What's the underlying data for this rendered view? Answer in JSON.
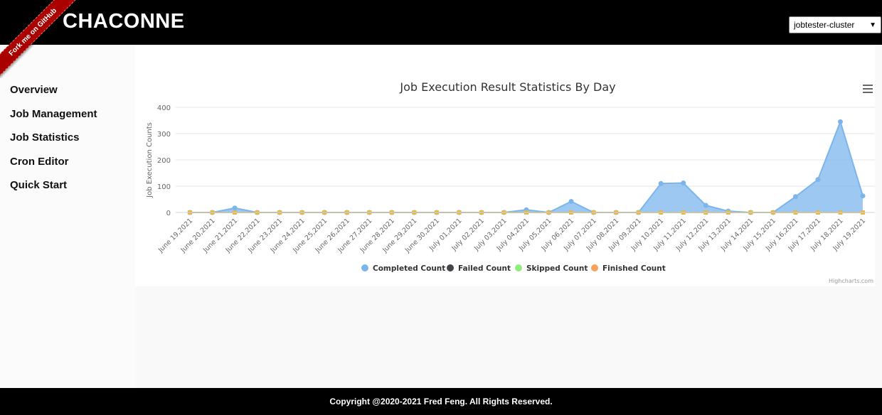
{
  "header": {
    "brand": "CHACONNE",
    "ribbon": "Fork me on GitHub",
    "cluster_select": "jobtester-cluster"
  },
  "sidebar": {
    "items": [
      {
        "label": "Overview"
      },
      {
        "label": "Job Management"
      },
      {
        "label": "Job Statistics"
      },
      {
        "label": "Cron Editor"
      },
      {
        "label": "Quick Start"
      }
    ]
  },
  "footer": {
    "text": "Copyright @2020-2021 Fred Feng. All Rights Reserved."
  },
  "credit": "Highcharts.com",
  "colors": {
    "completed": "#7cb5ec",
    "failed": "#434348",
    "skipped": "#90ed7d",
    "finished": "#f7a35c"
  },
  "icons": {
    "menu": "hamburger-menu-icon"
  },
  "chart_data": {
    "type": "area",
    "title": "Job Execution Result Statistics By Day",
    "ylabel": "Job Execution Counts",
    "ylim": [
      0,
      400
    ],
    "yticks": [
      0,
      100,
      200,
      300,
      400
    ],
    "grid": true,
    "legend_position": "bottom-center",
    "categories": [
      "June 19,2021",
      "June 20,2021",
      "June 21,2021",
      "June 22,2021",
      "June 23,2021",
      "June 24,2021",
      "June 25,2021",
      "June 26,2021",
      "June 27,2021",
      "June 28,2021",
      "June 29,2021",
      "June 30,2021",
      "July 01,2021",
      "July 02,2021",
      "July 03,2021",
      "July 04,2021",
      "July 05,2021",
      "July 06,2021",
      "July 07,2021",
      "July 08,2021",
      "July 09,2021",
      "July 10,2021",
      "July 11,2021",
      "July 12,2021",
      "July 13,2021",
      "July 14,2021",
      "July 15,2021",
      "July 16,2021",
      "July 17,2021",
      "July 18,2021",
      "July 19,2021"
    ],
    "series": [
      {
        "name": "Completed Count",
        "values": [
          0,
          0,
          17,
          0,
          0,
          0,
          0,
          0,
          0,
          0,
          0,
          0,
          0,
          0,
          0,
          10,
          0,
          42,
          0,
          0,
          0,
          110,
          112,
          27,
          5,
          0,
          0,
          60,
          125,
          345,
          63
        ]
      },
      {
        "name": "Failed Count",
        "values": [
          0,
          0,
          0,
          0,
          0,
          0,
          0,
          0,
          0,
          0,
          0,
          0,
          0,
          0,
          0,
          0,
          0,
          0,
          0,
          0,
          0,
          0,
          0,
          0,
          0,
          0,
          0,
          0,
          0,
          0,
          0
        ]
      },
      {
        "name": "Skipped Count",
        "values": [
          0,
          0,
          0,
          0,
          0,
          0,
          0,
          0,
          0,
          0,
          0,
          0,
          0,
          0,
          0,
          0,
          0,
          0,
          0,
          0,
          0,
          0,
          0,
          0,
          0,
          0,
          0,
          0,
          0,
          0,
          0
        ]
      },
      {
        "name": "Finished Count",
        "values": [
          0,
          0,
          0,
          0,
          0,
          0,
          0,
          0,
          0,
          0,
          0,
          0,
          0,
          0,
          0,
          0,
          0,
          0,
          0,
          0,
          0,
          0,
          0,
          0,
          0,
          0,
          0,
          0,
          0,
          0,
          0
        ]
      }
    ]
  }
}
